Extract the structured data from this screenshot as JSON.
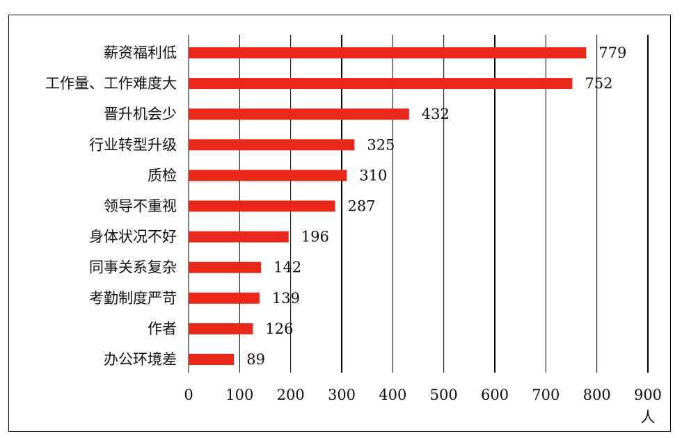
{
  "chart_data": {
    "type": "bar",
    "orientation": "horizontal",
    "categories": [
      "薪资福利低",
      "工作量、工作难度大",
      "晋升机会少",
      "行业转型升级",
      "质检",
      "领导不重视",
      "身体状况不好",
      "同事关系复杂",
      "考勤制度严苛",
      "作者",
      "办公环境差"
    ],
    "values": [
      779,
      752,
      432,
      325,
      310,
      287,
      196,
      142,
      139,
      126,
      89
    ],
    "xticks": [
      "0",
      "100",
      "200",
      "300",
      "400",
      "500",
      "600",
      "700",
      "800",
      "900"
    ],
    "xlim": [
      0,
      900
    ],
    "xunit": "人",
    "title": "",
    "xlabel": "",
    "ylabel": "",
    "grid": "vertical",
    "legend": "none",
    "bar_color": "#e8281b"
  }
}
